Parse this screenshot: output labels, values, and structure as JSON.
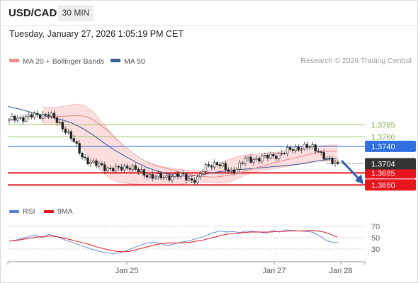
{
  "header": {
    "symbol": "USD/CAD",
    "timeframe": "30 MIN"
  },
  "timestamp": "Tuesday, January 27, 2026 1:05:19 PM CET",
  "credit": "Research © 2026 Trading Central",
  "colors": {
    "ma20": "#f08a8a",
    "ma50": "#3a5f99",
    "band_fill": "#fbd3d3",
    "resistance_green": "#8cc04a",
    "pivot_blue": "#2f6fe0",
    "support_red": "#e8141e",
    "current_dark": "#333333",
    "arrow": "#2f5fb0",
    "rsi": "#5b7fd6",
    "rsi_ma": "#e8141e"
  },
  "chart_data": [
    {
      "type": "candlestick",
      "legend": [
        {
          "label": "MA 20 + Bollinger Bands",
          "color": "#f08a8a",
          "icon": "band-swatch"
        },
        {
          "label": "MA 50",
          "color": "#3a5f99",
          "icon": "line-swatch"
        }
      ],
      "ylim": [
        1.364,
        1.39
      ],
      "current_price": "1.3704",
      "levels": [
        {
          "value": 1.3785,
          "label": "1.3785",
          "kind": "resistance",
          "color": "#8cc04a"
        },
        {
          "value": 1.376,
          "label": "1.3760",
          "kind": "resistance",
          "color": "#8cc04a"
        },
        {
          "value": 1.374,
          "label": "1.3740",
          "kind": "pivot",
          "color": "#2f6fe0"
        },
        {
          "value": 1.3685,
          "label": "1.3685",
          "kind": "support",
          "color": "#e8141e"
        },
        {
          "value": 1.366,
          "label": "1.3660",
          "kind": "support",
          "color": "#e8141e"
        }
      ],
      "close_path": [
        1.3794,
        1.3797,
        1.3799,
        1.38,
        1.3802,
        1.3803,
        1.3804,
        1.3806,
        1.3808,
        1.38,
        1.379,
        1.3781,
        1.377,
        1.3755,
        1.3738,
        1.3721,
        1.3712,
        1.3706,
        1.3702,
        1.37,
        1.3696,
        1.3694,
        1.3692,
        1.3694,
        1.3697,
        1.3699,
        1.3693,
        1.3686,
        1.3682,
        1.368,
        1.3678,
        1.3676,
        1.3675,
        1.3677,
        1.368,
        1.3681,
        1.3678,
        1.3672,
        1.3671,
        1.3673,
        1.3688,
        1.37,
        1.3704,
        1.3705,
        1.3698,
        1.369,
        1.3688,
        1.3695,
        1.3705,
        1.3712,
        1.3712,
        1.3715,
        1.3716,
        1.3717,
        1.3719,
        1.3721,
        1.3725,
        1.3728,
        1.3732,
        1.3736,
        1.3738,
        1.3739,
        1.3738,
        1.3737,
        1.3732,
        1.372,
        1.371,
        1.3706,
        1.3704
      ],
      "ma20_path": [
        1.38,
        1.3801,
        1.3802,
        1.3803,
        1.3804,
        1.3803,
        1.3797,
        1.3786,
        1.3772,
        1.3756,
        1.374,
        1.3726,
        1.3714,
        1.3706,
        1.37,
        1.3695,
        1.369,
        1.3686,
        1.3682,
        1.3679,
        1.3677,
        1.3676,
        1.3678,
        1.3681,
        1.3685,
        1.369,
        1.3695,
        1.37,
        1.3705,
        1.3709,
        1.3713,
        1.3717,
        1.3721,
        1.3725,
        1.3728,
        1.373,
        1.373
      ],
      "upper_band_path": [
        1.3822,
        1.3821,
        1.3822,
        1.3825,
        1.3828,
        1.3825,
        1.3812,
        1.3792,
        1.377,
        1.3748,
        1.373,
        1.3716,
        1.3706,
        1.3701,
        1.3698,
        1.3696,
        1.3693,
        1.3691,
        1.369,
        1.3689,
        1.3692,
        1.3703,
        1.3712,
        1.3718,
        1.3722,
        1.3724,
        1.3725,
        1.3727,
        1.3728,
        1.3732,
        1.3735,
        1.3737,
        1.3739,
        1.3741,
        1.3743,
        1.3743
      ],
      "lower_band_path": [
        1.3785,
        1.3786,
        1.3785,
        1.3775,
        1.3755,
        1.373,
        1.3708,
        1.3688,
        1.3674,
        1.3666,
        1.3663,
        1.3662,
        1.3661,
        1.366,
        1.3659,
        1.366,
        1.3661,
        1.3663,
        1.3665,
        1.3666,
        1.3666,
        1.3664,
        1.3665,
        1.3672,
        1.368,
        1.3686,
        1.369,
        1.3693,
        1.3695,
        1.3698,
        1.3702,
        1.3706,
        1.3709,
        1.371,
        1.371,
        1.371
      ],
      "ma50_path": [
        1.3823,
        1.3818,
        1.3812,
        1.3806,
        1.3801,
        1.3796,
        1.3789,
        1.3778,
        1.3764,
        1.3748,
        1.3733,
        1.372,
        1.3708,
        1.3697,
        1.3689,
        1.3683,
        1.3679,
        1.3678,
        1.368,
        1.3684,
        1.3688,
        1.369,
        1.3692,
        1.3694,
        1.3696,
        1.3698,
        1.37,
        1.3702,
        1.3705,
        1.3709,
        1.3713,
        1.3716
      ],
      "projection": {
        "from": 1.3709,
        "to": 1.366
      }
    },
    {
      "type": "line",
      "legend": [
        {
          "label": "RSI",
          "color": "#5b7fd6"
        },
        {
          "label": "9MA",
          "color": "#e8141e"
        }
      ],
      "ylim": [
        20,
        80
      ],
      "levels": [
        {
          "value": 70,
          "label": "70"
        },
        {
          "value": 50,
          "label": "50"
        },
        {
          "value": 30,
          "label": "30"
        }
      ],
      "series": [
        {
          "name": "RSI",
          "values": [
            44,
            46,
            49,
            52,
            55,
            50,
            56,
            53,
            48,
            44,
            40,
            36,
            32,
            28,
            25,
            23,
            22,
            24,
            28,
            33,
            37,
            41,
            42,
            40,
            36,
            39,
            42,
            44,
            47,
            50,
            54,
            59,
            62,
            60,
            61,
            59,
            62,
            61,
            60,
            58,
            63,
            60,
            64,
            63,
            62,
            61,
            60,
            54,
            46,
            42,
            41
          ]
        },
        {
          "name": "9MA",
          "values": [
            44,
            45,
            47,
            49,
            51,
            52,
            53,
            52,
            50,
            47,
            44,
            41,
            38,
            34,
            31,
            28,
            26,
            25,
            26,
            29,
            32,
            35,
            38,
            40,
            41,
            41,
            41,
            42,
            44,
            46,
            49,
            52,
            55,
            57,
            58,
            59,
            60,
            60,
            60,
            60,
            61,
            61,
            62,
            62,
            62,
            63,
            62,
            60,
            56,
            51
          ]
        }
      ],
      "x_ticks": [
        "Jan 25",
        "Jan 27",
        "Jan 28"
      ]
    }
  ]
}
